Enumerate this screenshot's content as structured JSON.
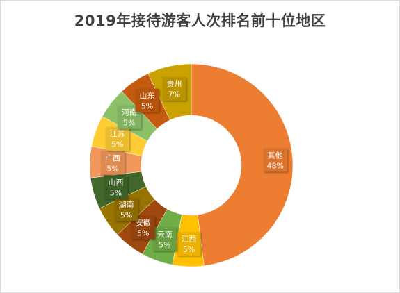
{
  "chart_data": {
    "type": "pie",
    "variant": "doughnut",
    "title": "2019年接待游客人次排名前十位地区",
    "slices": [
      {
        "label": "其他",
        "value": 48,
        "display": "48%",
        "color": "#ED7D31"
      },
      {
        "label": "江西",
        "value": 5,
        "display": "5%",
        "color": "#FFC000"
      },
      {
        "label": "云南",
        "value": 5,
        "display": "5%",
        "color": "#70AD47"
      },
      {
        "label": "安徽",
        "value": 5,
        "display": "5%",
        "color": "#9E480E"
      },
      {
        "label": "湖南",
        "value": 5,
        "display": "5%",
        "color": "#997300"
      },
      {
        "label": "山西",
        "value": 5,
        "display": "5%",
        "color": "#43682B"
      },
      {
        "label": "广西",
        "value": 5,
        "display": "5%",
        "color": "#F1975A"
      },
      {
        "label": "江苏",
        "value": 5,
        "display": "5%",
        "color": "#FFCD33"
      },
      {
        "label": "河南",
        "value": 5,
        "display": "5%",
        "color": "#8CC168"
      },
      {
        "label": "山东",
        "value": 5,
        "display": "5%",
        "color": "#C55A11"
      },
      {
        "label": "贵州",
        "value": 7,
        "display": "7%",
        "color": "#C9A100"
      }
    ],
    "legend": "none",
    "data_labels": "category-and-percent"
  }
}
